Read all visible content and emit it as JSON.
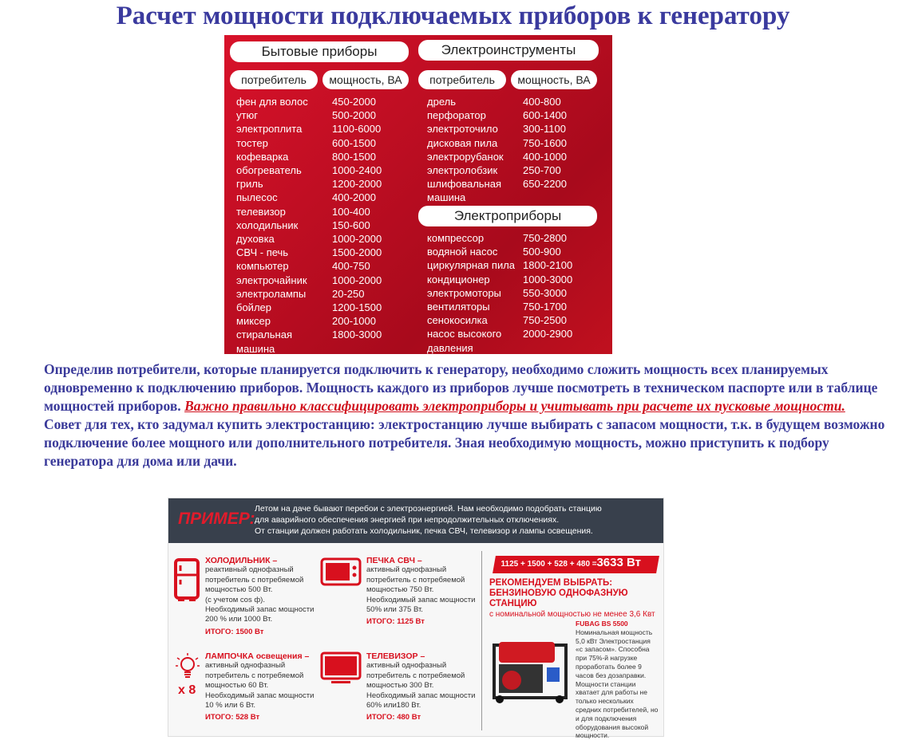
{
  "title": "Расчет мощности подключаемых приборов к генератору",
  "table": {
    "household": {
      "header": "Бытовые приборы",
      "col1": "потребитель",
      "col2": "мощность, ВА",
      "rows": [
        [
          "фен для волос",
          "450-2000"
        ],
        [
          "утюг",
          "500-2000"
        ],
        [
          "электроплита",
          "1100-6000"
        ],
        [
          "тостер",
          "600-1500"
        ],
        [
          "кофеварка",
          "800-1500"
        ],
        [
          "обогреватель",
          "1000-2400"
        ],
        [
          "гриль",
          "1200-2000"
        ],
        [
          "пылесос",
          "400-2000"
        ],
        [
          "телевизор",
          "100-400"
        ],
        [
          "холодильник",
          "150-600"
        ],
        [
          "духовка",
          "1000-2000"
        ],
        [
          "СВЧ - печь",
          "1500-2000"
        ],
        [
          "компьютер",
          "400-750"
        ],
        [
          "электрочайник",
          "1000-2000"
        ],
        [
          "электролампы",
          "20-250"
        ],
        [
          "бойлер",
          "1200-1500"
        ],
        [
          "миксер",
          "200-1000"
        ],
        [
          "стиральная машина",
          "1800-3000"
        ]
      ]
    },
    "tools": {
      "header": "Электроинструменты",
      "col1": "потребитель",
      "col2": "мощность, ВА",
      "rows": [
        [
          "дрель",
          "400-800"
        ],
        [
          "перфоратор",
          "600-1400"
        ],
        [
          "электроточило",
          "300-1100"
        ],
        [
          "дисковая пила",
          "750-1600"
        ],
        [
          "электрорубанок",
          "400-1000"
        ],
        [
          "электролобзик",
          "250-700"
        ],
        [
          "шлифовальная машина",
          "650-2200"
        ]
      ]
    },
    "appliances": {
      "header": "Электроприборы",
      "rows": [
        [
          "компрессор",
          "750-2800"
        ],
        [
          "водяной насос",
          "500-900"
        ],
        [
          "циркулярная пила",
          "1800-2100"
        ],
        [
          "кондиционер",
          "1000-3000"
        ],
        [
          "электромоторы",
          "550-3000"
        ],
        [
          "вентиляторы",
          "750-1700"
        ],
        [
          "сенокосилка",
          "750-2500"
        ],
        [
          "насос высокого давления",
          "2000-2900"
        ]
      ]
    }
  },
  "paragraph": {
    "p1": "Определив потребители, которые планируется подключить к генератору, необходимо сложить мощность всех планируемых одновременно к подключению приборов. Мощность каждого из приборов лучше посмотреть в техническом паспорте или в таблице мощностей приборов. ",
    "warning": "Важно правильно классифицировать электроприборы и учитывать при расчете их пусковые мощности.",
    "p2": "Совет для тех, кто задумал купить электростанцию: электростанцию лучше выбирать с запасом мощности, т.к. в будущем возможно подключение более мощного или дополнительного потребителя. Зная необходимую мощность, можно приступить к подбору генератора для дома или дачи."
  },
  "example": {
    "label": "ПРИМЕР:",
    "intro": [
      "Летом на даче бывают перебои с электроэнергией. Нам необходимо подобрать станцию",
      "для аварийного обеспечения энергией при непродолжительных отключениях.",
      "От станции должен работать холодильник, печка СВЧ, телевизор и лампы освещения."
    ],
    "items": [
      {
        "title": "ХОЛОДИЛЬНИК –",
        "lines": [
          "реактивный однофазный",
          "потребитель с потребяемой",
          "мощностью 500 Вт.",
          "(с учетом cos ф).",
          "Необходимый запас мощности",
          "200 % или 1000 Вт."
        ],
        "total": "ИТОГО: 1500 Вт",
        "icon": "fridge-icon"
      },
      {
        "title": "ПЕЧКА СВЧ –",
        "lines": [
          "активный однофазный",
          "потребитель с потребяемой",
          "мощностью 750 Вт.",
          "Необходимый запас мощности",
          "50% или 375 Вт."
        ],
        "total": "ИТОГО: 1125 Вт",
        "icon": "microwave-icon"
      },
      {
        "title": "ЛАМПОЧКА освещения –",
        "lines": [
          "активный однофазный",
          "потребитель с потребяемой",
          "мощностью 60 Вт.",
          "Необходимый запас мощности",
          "10 % или 6 Вт."
        ],
        "total": "ИТОГО: 528 Вт",
        "icon": "light-bulb-icon"
      },
      {
        "title": "ТЕЛЕВИЗОР –",
        "lines": [
          "активный однофазный",
          "потребитель с потребяемой",
          "мощностью 300 Вт.",
          "Необходимый запас мощности",
          "60% или180 Вт."
        ],
        "total": "ИТОГО: 480 Вт",
        "icon": "tv-icon"
      }
    ],
    "multiplier": "x 8",
    "sum_expr": "1125 + 1500 + 528 + 480 = ",
    "sum_total": "3633 Вт",
    "rec1": "РЕКОМЕНДУЕМ ВЫБРАТЬ:",
    "rec2": "БЕНЗИНОВУЮ ОДНОФАЗНУЮ СТАНЦИЮ",
    "rec3": "с номинальной мощностью не менее 3,6 Квт",
    "gen_model": "FUBAG BS 5500",
    "gen_text": "Номинальная мощность 5,0 кВт Электростанция «с запасом». Способна при 75%-й нагрузке проработать более 9 часов без дозаправки. Мощности станции хватает для работы не только нескольких средних потребителей, но и для подключения оборудования высокой мощности.",
    "colors": {
      "accent": "#d8101e",
      "header": "#38404c"
    }
  }
}
